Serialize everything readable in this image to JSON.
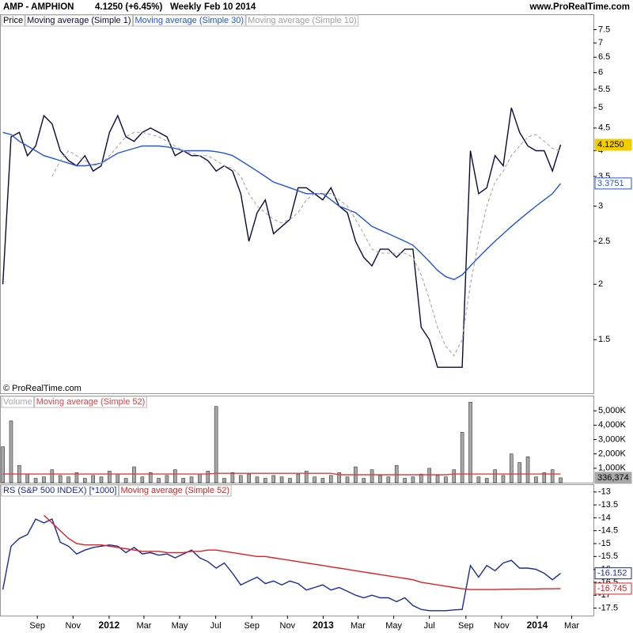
{
  "header": {
    "title": "AMP - AMPHION",
    "last": "4.1250 (+6.45%)",
    "period": "Weekly",
    "date": "Feb 10 2014",
    "site": "www.ProRealTime.com"
  },
  "chart_data": [
    {
      "type": "line",
      "label": "Price",
      "annotation": "© ProRealTime.com",
      "log_scale": true,
      "x": [
        -4,
        -2,
        0,
        2,
        4,
        6,
        8,
        10,
        12,
        14,
        16,
        18,
        20,
        22,
        24,
        26,
        28,
        30,
        32,
        34,
        36,
        38,
        40,
        42,
        44,
        46,
        48,
        50,
        52,
        54,
        56,
        58,
        60,
        62,
        64,
        66,
        68,
        70,
        72,
        74,
        76,
        78,
        80,
        82,
        84,
        86,
        88,
        90,
        92,
        94,
        96,
        98,
        100,
        102,
        104,
        106,
        108,
        110,
        112,
        114,
        116,
        118,
        120,
        122,
        124,
        126,
        128,
        130,
        132
      ],
      "xlim": [
        -4.7,
        140
      ],
      "ylim": [
        1.136,
        8.09
      ],
      "yticks": [
        1.5,
        2,
        2.5,
        3,
        3.5,
        4,
        4.5,
        5,
        5.5,
        6,
        6.5,
        7,
        7.5
      ],
      "series": [
        {
          "name": "Moving average (Simple 1)",
          "color": "#0a0a3c",
          "values": [
            2.0,
            4.3,
            4.4,
            3.9,
            4.1,
            4.8,
            4.6,
            4.0,
            3.8,
            3.7,
            3.9,
            3.6,
            3.7,
            4.4,
            4.8,
            4.3,
            4.2,
            4.4,
            4.5,
            4.4,
            4.3,
            3.9,
            4.0,
            3.9,
            3.9,
            3.8,
            3.6,
            3.7,
            3.6,
            3.2,
            2.5,
            2.9,
            3.1,
            2.6,
            2.7,
            2.8,
            3.3,
            3.3,
            3.2,
            3.1,
            3.3,
            3.0,
            2.9,
            2.5,
            2.3,
            2.2,
            2.4,
            2.4,
            2.3,
            2.4,
            2.4,
            1.6,
            1.5,
            1.3,
            1.3,
            1.3,
            1.3,
            4.0,
            3.2,
            3.3,
            3.9,
            3.7,
            5.0,
            4.4,
            4.1,
            4.0,
            4.0,
            3.6,
            4.125
          ]
        },
        {
          "name": "Moving average (Simple 30)",
          "color": "#2255dd",
          "values": [
            4.4,
            4.35,
            4.2,
            4.1,
            4.0,
            3.9,
            3.85,
            3.8,
            3.75,
            3.7,
            3.7,
            3.72,
            3.75,
            3.85,
            3.95,
            4.0,
            4.05,
            4.1,
            4.1,
            4.1,
            4.08,
            4.05,
            4.0,
            4.0,
            4.0,
            4.0,
            3.98,
            3.95,
            3.9,
            3.8,
            3.7,
            3.6,
            3.5,
            3.4,
            3.35,
            3.3,
            3.25,
            3.2,
            3.2,
            3.2,
            3.1,
            3.0,
            2.95,
            2.9,
            2.8,
            2.7,
            2.65,
            2.6,
            2.55,
            2.5,
            2.45,
            2.35,
            2.25,
            2.15,
            2.08,
            2.05,
            2.1,
            2.2,
            2.3,
            2.4,
            2.5,
            2.6,
            2.7,
            2.8,
            2.9,
            3.0,
            3.1,
            3.2,
            3.3751
          ]
        },
        {
          "name": "Moving average (Simple 10)",
          "color": "#a0a0a0",
          "dash": true,
          "values": [
            null,
            null,
            null,
            null,
            null,
            null,
            3.5,
            3.8,
            4.0,
            3.9,
            3.8,
            3.7,
            3.75,
            3.9,
            4.1,
            4.3,
            4.4,
            4.4,
            4.35,
            4.3,
            4.2,
            4.1,
            4.0,
            3.95,
            3.9,
            3.9,
            3.8,
            3.7,
            3.65,
            3.5,
            3.2,
            3.0,
            2.9,
            2.8,
            2.75,
            2.8,
            2.9,
            3.1,
            3.2,
            3.2,
            3.2,
            3.1,
            3.0,
            2.8,
            2.6,
            2.4,
            2.35,
            2.35,
            2.35,
            2.35,
            2.3,
            2.1,
            1.85,
            1.6,
            1.45,
            1.38,
            1.5,
            2.0,
            2.5,
            3.0,
            3.4,
            3.6,
            3.9,
            4.1,
            4.3,
            4.35,
            4.2,
            4.05,
            4.0
          ]
        }
      ],
      "markers": [
        {
          "value": 4.125,
          "label": "4.1250",
          "color": "#f2cc00"
        },
        {
          "value": 3.3751,
          "label": "3.3751",
          "color": "#2255dd"
        }
      ]
    },
    {
      "type": "bar",
      "x": [
        -4,
        -2,
        0,
        2,
        4,
        6,
        8,
        10,
        12,
        14,
        16,
        18,
        20,
        22,
        24,
        26,
        28,
        30,
        32,
        34,
        36,
        38,
        40,
        42,
        44,
        46,
        48,
        50,
        52,
        54,
        56,
        58,
        60,
        62,
        64,
        66,
        68,
        70,
        72,
        74,
        76,
        78,
        80,
        82,
        84,
        86,
        88,
        90,
        92,
        94,
        96,
        98,
        100,
        102,
        104,
        106,
        108,
        110,
        112,
        114,
        116,
        118,
        120,
        122,
        124,
        126,
        128,
        130,
        132
      ],
      "xlim": [
        -4.7,
        140
      ],
      "ylim": [
        0,
        6000000
      ],
      "yticks": [
        {
          "value": 1000000,
          "label": "1,000K"
        },
        {
          "value": 2000000,
          "label": "2,000K"
        },
        {
          "value": 3000000,
          "label": "3,000K"
        },
        {
          "value": 4000000,
          "label": "4,000K"
        },
        {
          "value": 5000000,
          "label": "5,000K"
        }
      ],
      "series": [
        {
          "name": "Volume",
          "type": "bar",
          "color": "#a8a8a8",
          "values": [
            2500000,
            4300000,
            1200000,
            600000,
            300000,
            400000,
            900000,
            500000,
            400000,
            700000,
            300000,
            500000,
            400000,
            800000,
            600000,
            300000,
            1100000,
            400000,
            700000,
            300000,
            500000,
            900000,
            300000,
            400000,
            600000,
            800000,
            5300000,
            300000,
            700000,
            500000,
            600000,
            400000,
            300000,
            500000,
            400000,
            300000,
            600000,
            800000,
            400000,
            300000,
            500000,
            700000,
            400000,
            1100000,
            300000,
            900000,
            500000,
            400000,
            1200000,
            300000,
            400000,
            600000,
            1000000,
            500000,
            400000,
            900000,
            3500000,
            5600000,
            400000,
            300000,
            900000,
            500000,
            2000000,
            1400000,
            1800000,
            400000,
            700000,
            900000,
            336374
          ]
        },
        {
          "name": "Moving average (Simple 52)",
          "type": "line",
          "color": "#e04040",
          "values": [
            600000,
            600000,
            600000,
            600000,
            600000,
            600000,
            600000,
            600000,
            600000,
            600000,
            600000,
            600000,
            600000,
            600000,
            600000,
            600000,
            600000,
            600000,
            600000,
            600000,
            600000,
            600000,
            600000,
            600000,
            600000,
            600000,
            650000,
            650000,
            650000,
            650000,
            650000,
            650000,
            650000,
            650000,
            650000,
            650000,
            650000,
            650000,
            650000,
            650000,
            650000,
            550000,
            550000,
            550000,
            550000,
            550000,
            550000,
            550000,
            550000,
            550000,
            550000,
            550000,
            550000,
            550000,
            550000,
            600000,
            600000,
            600000,
            600000,
            600000,
            600000,
            600000,
            600000,
            600000,
            600000,
            600000,
            600000,
            600000,
            600000
          ]
        }
      ],
      "markers": [
        {
          "value": 336374,
          "label": "336,374",
          "color": "#a8a8a8"
        }
      ]
    },
    {
      "type": "line",
      "x": [
        -4,
        -2,
        0,
        2,
        4,
        6,
        8,
        10,
        12,
        14,
        16,
        18,
        20,
        22,
        24,
        26,
        28,
        30,
        32,
        34,
        36,
        38,
        40,
        42,
        44,
        46,
        48,
        50,
        52,
        54,
        56,
        58,
        60,
        62,
        64,
        66,
        68,
        70,
        72,
        74,
        76,
        78,
        80,
        82,
        84,
        86,
        88,
        90,
        92,
        94,
        96,
        98,
        100,
        102,
        104,
        106,
        108,
        110,
        112,
        114,
        116,
        118,
        120,
        122,
        124,
        126,
        128,
        130,
        132
      ],
      "xlim": [
        -4.7,
        140
      ],
      "xticks": [
        {
          "value": 4.4,
          "label": "Sep"
        },
        {
          "value": 13.1,
          "label": "Nov"
        },
        {
          "value": 21.9,
          "label": "2012"
        },
        {
          "value": 30.4,
          "label": "Mar"
        },
        {
          "value": 39.1,
          "label": "May"
        },
        {
          "value": 47.9,
          "label": "Jul"
        },
        {
          "value": 56.7,
          "label": "Sep"
        },
        {
          "value": 65.4,
          "label": "Nov"
        },
        {
          "value": 74.1,
          "label": "2013"
        },
        {
          "value": 82.6,
          "label": "Mar"
        },
        {
          "value": 91.3,
          "label": "May"
        },
        {
          "value": 100,
          "label": "Jul"
        },
        {
          "value": 108.9,
          "label": "Sep"
        },
        {
          "value": 117.6,
          "label": "Nov"
        },
        {
          "value": 126.3,
          "label": "2014"
        },
        {
          "value": 134.7,
          "label": "Mar"
        }
      ],
      "ylim": [
        -17.79,
        -12.73
      ],
      "yticks": [
        -17.5,
        -17,
        -16.5,
        -16,
        -15.5,
        -15,
        -14.5,
        -14,
        -13.5,
        -13
      ],
      "series": [
        {
          "name": "RS (S&P 500 INDEX) [*1000]",
          "color": "#1a2a9a",
          "values": [
            -16.78,
            -15.1,
            -14.8,
            -14.65,
            -14.05,
            -14.2,
            -14.05,
            -14.95,
            -15.1,
            -15.4,
            -15.25,
            -15.15,
            -15.1,
            -15.05,
            -15.1,
            -15.35,
            -15.15,
            -15.4,
            -15.35,
            -15.45,
            -15.4,
            -15.55,
            -15.4,
            -15.25,
            -15.55,
            -15.7,
            -15.95,
            -15.75,
            -16.15,
            -16.6,
            -16.45,
            -16.3,
            -16.55,
            -16.45,
            -16.6,
            -16.45,
            -16.55,
            -16.8,
            -16.7,
            -16.6,
            -16.8,
            -16.7,
            -16.85,
            -17.0,
            -17.1,
            -17.0,
            -17.1,
            -17.1,
            -17.25,
            -17.1,
            -17.4,
            -17.55,
            -17.6,
            -17.6,
            -17.6,
            -17.57,
            -17.55,
            -15.85,
            -16.3,
            -15.85,
            -16.05,
            -15.75,
            -15.65,
            -15.95,
            -15.95,
            -16.0,
            -16.15,
            -16.4,
            -16.152
          ]
        },
        {
          "name": "Moving average (Simple 52)",
          "color": "#e02020",
          "values": [
            null,
            null,
            null,
            null,
            null,
            -13.9,
            -14.2,
            -14.5,
            -14.8,
            -15.0,
            -15.05,
            -15.05,
            -15.05,
            -15.1,
            -15.15,
            -15.2,
            -15.25,
            -15.3,
            -15.3,
            -15.3,
            -15.35,
            -15.35,
            -15.35,
            -15.3,
            -15.3,
            -15.25,
            -15.25,
            -15.3,
            -15.35,
            -15.4,
            -15.45,
            -15.5,
            -15.5,
            -15.55,
            -15.6,
            -15.65,
            -15.7,
            -15.75,
            -15.8,
            -15.85,
            -15.9,
            -15.95,
            -16.0,
            -16.05,
            -16.1,
            -16.15,
            -16.2,
            -16.25,
            -16.3,
            -16.35,
            -16.4,
            -16.5,
            -16.55,
            -16.6,
            -16.65,
            -16.7,
            -16.75,
            -16.78,
            -16.78,
            -16.78,
            -16.78,
            -16.77,
            -16.77,
            -16.76,
            -16.76,
            -16.76,
            -16.75,
            -16.75,
            -16.745
          ]
        }
      ],
      "markers": [
        {
          "value": -16.152,
          "label": "-16.152",
          "color": "#1a2a9a"
        },
        {
          "value": -16.745,
          "label": "-16.745",
          "color": "#e02020"
        }
      ]
    }
  ]
}
